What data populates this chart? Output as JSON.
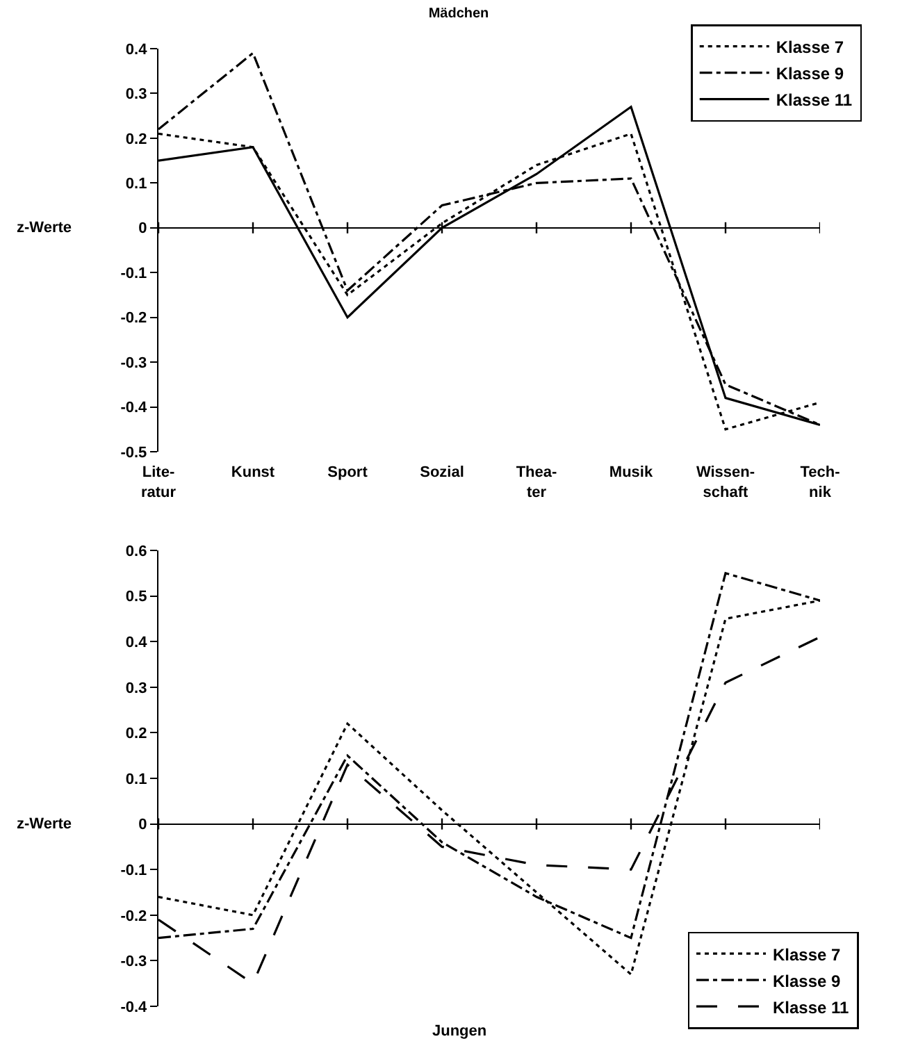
{
  "chart_data": [
    {
      "type": "line",
      "title": "Mädchen",
      "ylabel": "z-Werte",
      "categories": [
        "Lite-\nratur",
        "Kunst",
        "Sport",
        "Sozial",
        "Thea-\nter",
        "Musik",
        "Wissen-\nschaft",
        "Tech-\nnik"
      ],
      "ylim": [
        -0.5,
        0.4
      ],
      "yticks": [
        -0.5,
        -0.4,
        -0.3,
        -0.2,
        -0.1,
        0,
        0.1,
        0.2,
        0.3,
        0.4
      ],
      "legend": "top right",
      "marker": "none",
      "series": [
        {
          "name": "Klasse 7",
          "color": "#000000",
          "line_style": "dotted",
          "values": [
            0.21,
            0.18,
            -0.15,
            0.01,
            0.14,
            0.21,
            -0.45,
            -0.39
          ]
        },
        {
          "name": "Klasse 9",
          "color": "#000000",
          "line_style": "dashdot",
          "values": [
            0.22,
            0.39,
            -0.14,
            0.05,
            0.1,
            0.11,
            -0.35,
            -0.44
          ]
        },
        {
          "name": "Klasse 11",
          "color": "#000000",
          "line_style": "solid",
          "values": [
            0.15,
            0.18,
            -0.2,
            0.0,
            0.12,
            0.27,
            -0.38,
            -0.44
          ]
        }
      ]
    },
    {
      "type": "line",
      "title": "Jungen",
      "ylabel": "z-Werte",
      "categories": [
        null,
        null,
        null,
        null,
        null,
        null,
        null,
        null
      ],
      "tick_labels": "y",
      "ylim": [
        -0.4,
        0.6
      ],
      "yticks": [
        -0.4,
        -0.3,
        -0.2,
        -0.1,
        0,
        0.1,
        0.2,
        0.3,
        0.4,
        0.5,
        0.6
      ],
      "legend": "bottom right",
      "marker": "none",
      "series": [
        {
          "name": "Klasse 7",
          "color": "#000000",
          "line_style": "dotted",
          "values": [
            -0.16,
            -0.2,
            0.22,
            0.03,
            -0.15,
            -0.33,
            0.45,
            0.49
          ]
        },
        {
          "name": "Klasse 9",
          "color": "#000000",
          "line_style": "dashdot",
          "values": [
            -0.25,
            -0.23,
            0.15,
            -0.04,
            -0.16,
            -0.25,
            0.55,
            0.49
          ]
        },
        {
          "name": "Klasse 11",
          "color": "#000000",
          "line_style": "dashed",
          "values": [
            -0.21,
            -0.35,
            0.13,
            -0.05,
            -0.09,
            -0.1,
            0.31,
            0.41
          ]
        }
      ]
    }
  ]
}
